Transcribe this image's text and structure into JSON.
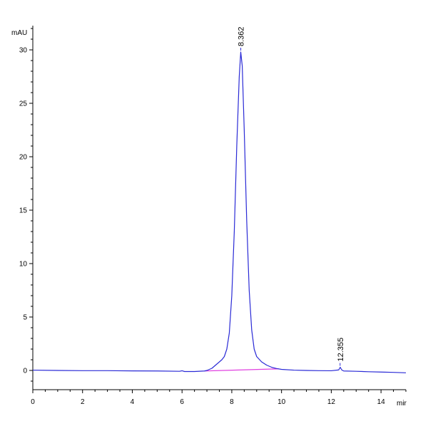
{
  "chart_data": {
    "type": "line",
    "title": "",
    "xlabel": "mir",
    "ylabel": "mAU",
    "xlim": [
      0,
      15
    ],
    "ylim": [
      -1.8,
      32
    ],
    "x_ticks": [
      0,
      2,
      4,
      6,
      8,
      10,
      12,
      14
    ],
    "y_ticks": [
      0,
      5,
      10,
      15,
      20,
      25,
      30
    ],
    "grid": false,
    "legend": "none",
    "colors": {
      "trace": "#2a2ad6",
      "baseline": "#e040e0",
      "axis": "#000000"
    },
    "series": [
      {
        "points": [
          [
            0.0,
            0.03
          ],
          [
            1.0,
            0.0
          ],
          [
            2.0,
            -0.02
          ],
          [
            3.0,
            -0.02
          ],
          [
            4.0,
            -0.04
          ],
          [
            5.0,
            -0.05
          ],
          [
            5.9,
            -0.08
          ],
          [
            6.0,
            -0.03
          ],
          [
            6.1,
            -0.1
          ],
          [
            6.5,
            -0.1
          ],
          [
            6.9,
            -0.05
          ],
          [
            7.0,
            0.0
          ],
          [
            7.2,
            0.2
          ],
          [
            7.4,
            0.6
          ],
          [
            7.6,
            1.0
          ],
          [
            7.7,
            1.3
          ],
          [
            7.8,
            2.0
          ],
          [
            7.9,
            3.5
          ],
          [
            8.0,
            7.0
          ],
          [
            8.1,
            13.0
          ],
          [
            8.2,
            21.0
          ],
          [
            8.3,
            27.5
          ],
          [
            8.36,
            29.8
          ],
          [
            8.42,
            28.5
          ],
          [
            8.5,
            22.5
          ],
          [
            8.6,
            14.0
          ],
          [
            8.7,
            7.5
          ],
          [
            8.8,
            3.8
          ],
          [
            8.9,
            2.0
          ],
          [
            9.0,
            1.3
          ],
          [
            9.2,
            0.8
          ],
          [
            9.4,
            0.5
          ],
          [
            9.6,
            0.3
          ],
          [
            9.8,
            0.18
          ],
          [
            10.0,
            0.1
          ],
          [
            10.5,
            0.03
          ],
          [
            11.0,
            0.0
          ],
          [
            11.5,
            -0.02
          ],
          [
            12.0,
            -0.03
          ],
          [
            12.3,
            0.05
          ],
          [
            12.36,
            0.3
          ],
          [
            12.42,
            0.05
          ],
          [
            12.5,
            -0.05
          ],
          [
            13.0,
            -0.08
          ],
          [
            13.5,
            -0.12
          ],
          [
            14.0,
            -0.15
          ],
          [
            14.5,
            -0.18
          ],
          [
            15.0,
            -0.22
          ]
        ]
      }
    ],
    "baseline": [
      [
        6.9,
        -0.05
      ],
      [
        9.9,
        0.15
      ]
    ],
    "peaks": [
      {
        "label": "8.362",
        "x": 8.362,
        "y": 29.8
      },
      {
        "label": "12.355",
        "x": 12.355,
        "y": 0.3
      }
    ]
  }
}
